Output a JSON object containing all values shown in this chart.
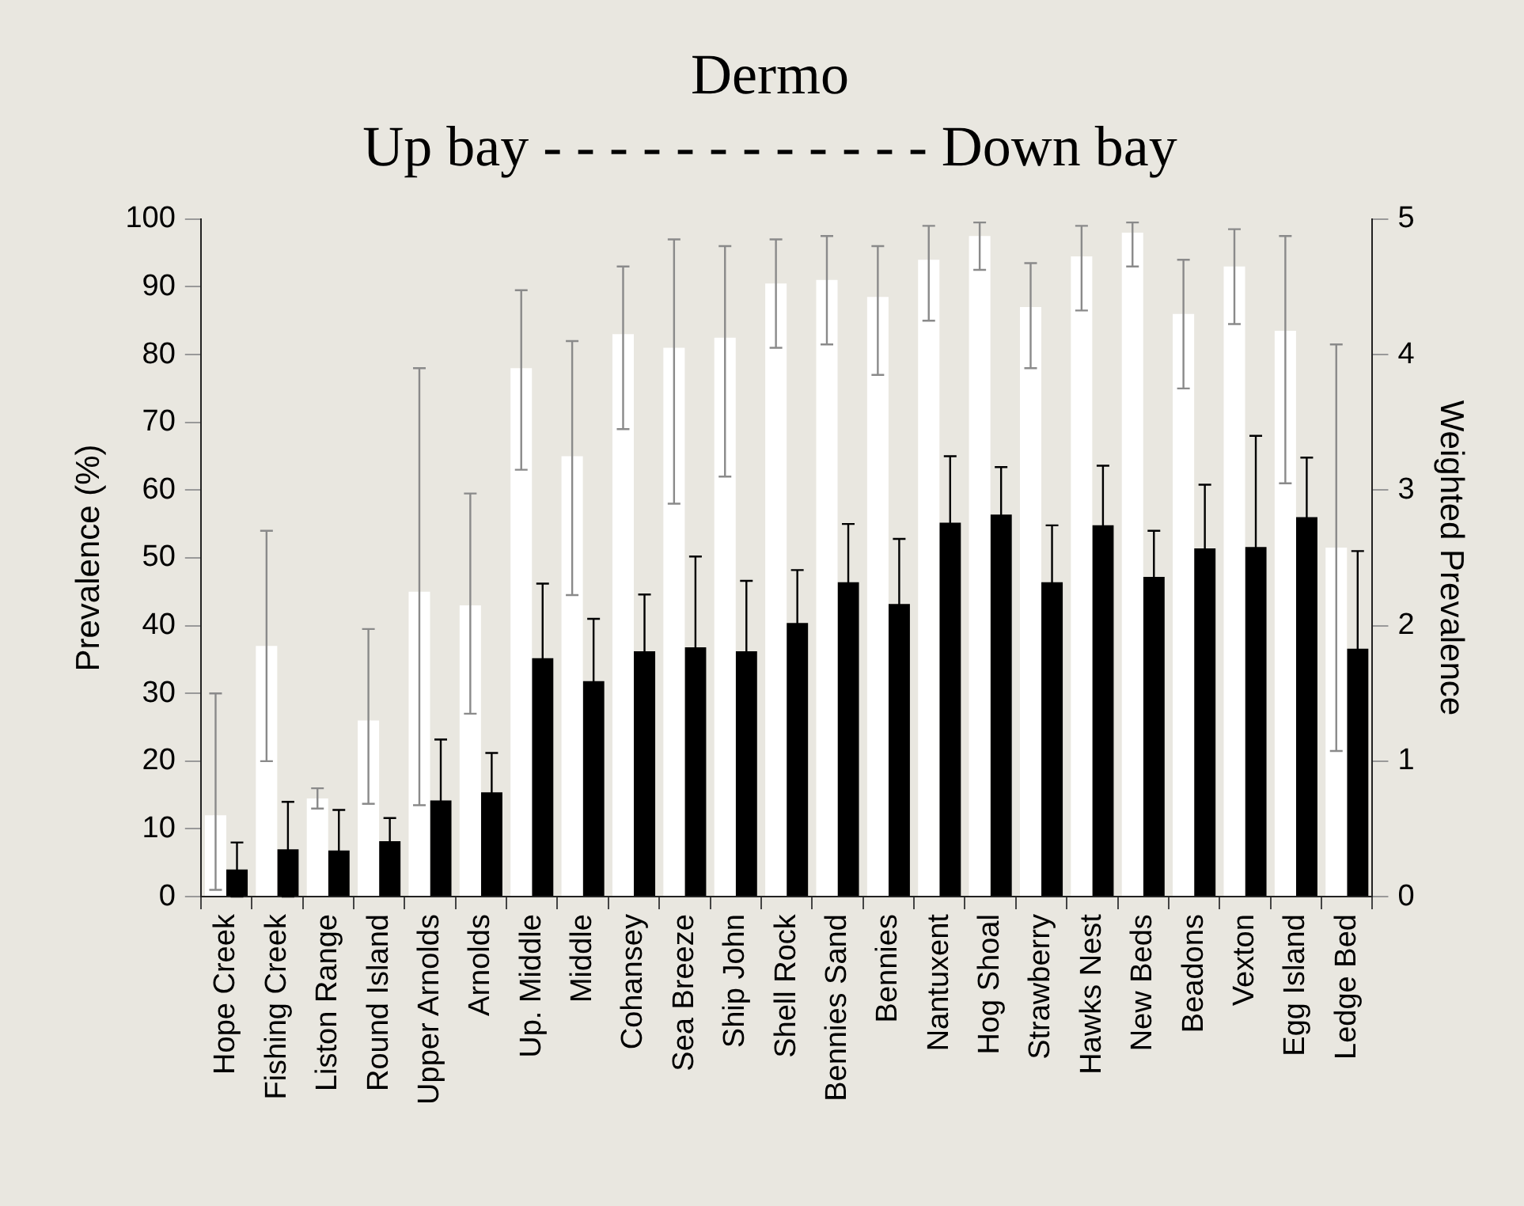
{
  "chart_data": {
    "type": "bar",
    "title": "Dermo",
    "subtitle": "Up bay - - - - - - - - - - - - Down bay",
    "ylabel": "Prevalence (%)",
    "y2label": "Weighted Prevalence",
    "categories": [
      "Hope Creek",
      "Fishing Creek",
      "Liston Range",
      "Round Island",
      "Upper Arnolds",
      "Arnolds",
      "Up. Middle",
      "Middle",
      "Cohansey",
      "Sea Breeze",
      "Ship John",
      "Shell Rock",
      "Bennies Sand",
      "Bennies",
      "Nantuxent",
      "Hog Shoal",
      "Strawberry",
      "Hawks Nest",
      "New Beds",
      "Beadons",
      "Vexton",
      "Egg Island",
      "Ledge Bed"
    ],
    "series": [
      {
        "color": "#ffffff",
        "values": [
          12,
          37,
          14.5,
          26,
          45,
          43,
          78,
          65,
          83,
          81,
          82.5,
          90.5,
          91,
          88.5,
          94,
          97.5,
          87,
          94.5,
          98,
          86,
          93,
          83.5,
          51.5
        ],
        "errors": [
          [
            1,
            30
          ],
          [
            20,
            54
          ],
          [
            13,
            16
          ],
          [
            13.7,
            39.5
          ],
          [
            13.5,
            78
          ],
          [
            27,
            59.5
          ],
          [
            63,
            89.5
          ],
          [
            44.5,
            82
          ],
          [
            69,
            93
          ],
          [
            58,
            97
          ],
          [
            62,
            96
          ],
          [
            81,
            97
          ],
          [
            81.5,
            97.5
          ],
          [
            77,
            96
          ],
          [
            85,
            99
          ],
          [
            92.5,
            99.5
          ],
          [
            78,
            93.5
          ],
          [
            86.5,
            99
          ],
          [
            93,
            99.5
          ],
          [
            75,
            94
          ],
          [
            84.5,
            98.5
          ],
          [
            61,
            97.5
          ],
          [
            21.5,
            81.5
          ]
        ]
      },
      {
        "color": "#000000",
        "axis": "y2",
        "values": [
          0.2,
          0.35,
          0.34,
          0.41,
          0.71,
          0.77,
          1.76,
          1.59,
          1.81,
          1.84,
          1.81,
          2.02,
          2.32,
          2.16,
          2.76,
          2.82,
          2.32,
          2.74,
          2.36,
          2.57,
          2.58,
          2.8,
          1.83
        ],
        "errors": [
          0.2,
          0.35,
          0.3,
          0.17,
          0.45,
          0.29,
          0.55,
          0.46,
          0.42,
          0.67,
          0.52,
          0.39,
          0.43,
          0.48,
          0.49,
          0.35,
          0.42,
          0.44,
          0.34,
          0.47,
          0.82,
          0.44,
          0.72
        ]
      }
    ],
    "ylim": [
      0,
      100
    ],
    "yticks": [
      0,
      10,
      20,
      30,
      40,
      50,
      60,
      70,
      80,
      90,
      100
    ],
    "y2lim": [
      0,
      5
    ],
    "y2ticks": [
      0,
      1,
      2,
      3,
      4,
      5
    ],
    "grid": false,
    "legend": false
  }
}
